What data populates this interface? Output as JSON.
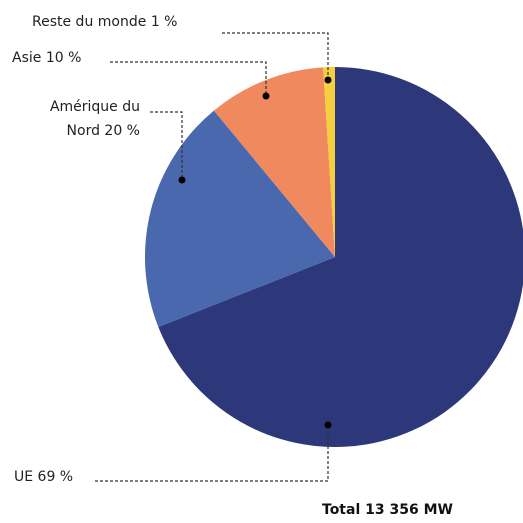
{
  "chart_data": {
    "type": "pie",
    "categories": [
      "UE",
      "Amérique du Nord",
      "Asie",
      "Reste du monde"
    ],
    "values": [
      69,
      20,
      10,
      1
    ],
    "value_labels": [
      "69 %",
      "20 %",
      "10 %",
      "1 %"
    ],
    "colors": [
      "#2c3879",
      "#4a68ad",
      "#f0895e",
      "#f4cf3e"
    ],
    "total": "Total 13 356 MW"
  }
}
